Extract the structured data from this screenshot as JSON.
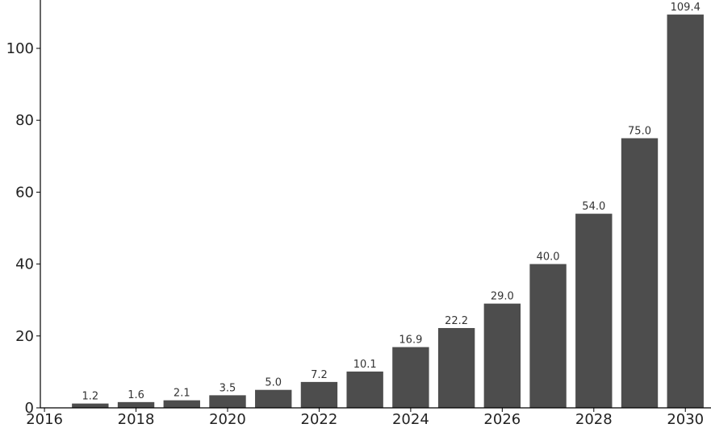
{
  "chart_data": {
    "type": "bar",
    "x": [
      2017,
      2018,
      2019,
      2020,
      2021,
      2022,
      2023,
      2024,
      2025,
      2026,
      2027,
      2028,
      2029,
      2030
    ],
    "values": [
      1.2,
      1.6,
      2.1,
      3.5,
      5.0,
      7.2,
      10.1,
      16.9,
      22.2,
      29.0,
      40.0,
      54.0,
      75.0,
      109.4
    ],
    "value_labels": [
      "1.2",
      "1.6",
      "2.1",
      "3.5",
      "5.0",
      "7.2",
      "10.1",
      "16.9",
      "22.2",
      "29.0",
      "40.0",
      "54.0",
      "75.0",
      "109.4"
    ],
    "color": "#4d4d4d",
    "xlim": [
      2015.91,
      2030.56
    ],
    "xticks": [
      2016,
      2018,
      2020,
      2022,
      2024,
      2026,
      2028,
      2030
    ],
    "ylim": [
      0,
      113.45
    ],
    "yticks": [
      0,
      20,
      40,
      60,
      80,
      100
    ]
  }
}
